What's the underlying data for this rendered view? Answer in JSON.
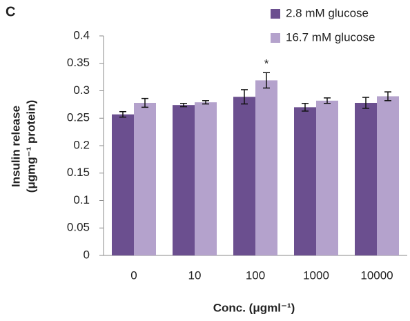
{
  "chart_data": {
    "type": "bar",
    "panel_label": "C",
    "x_label": "Conc. (μgml⁻¹)",
    "y_label": [
      "Insulin release",
      "(μgmg⁻¹ protein)"
    ],
    "categories": [
      "0",
      "10",
      "100",
      "1000",
      "10000"
    ],
    "series": [
      {
        "name": "2.8 mM glucose",
        "color": "#6b4f8f",
        "values": [
          0.257,
          0.274,
          0.289,
          0.27,
          0.278
        ],
        "errors": [
          0.005,
          0.003,
          0.013,
          0.007,
          0.01
        ]
      },
      {
        "name": "16.7 mM glucose",
        "color": "#b4a2cc",
        "values": [
          0.278,
          0.279,
          0.319,
          0.282,
          0.29
        ],
        "errors": [
          0.008,
          0.003,
          0.014,
          0.005,
          0.008
        ]
      }
    ],
    "annotation": "*",
    "ylim": [
      0,
      0.4
    ],
    "yticks": [
      0,
      0.05,
      0.1,
      0.15,
      0.2,
      0.25,
      0.3,
      0.35,
      0.4
    ],
    "grid": false,
    "legend": "top-right"
  }
}
